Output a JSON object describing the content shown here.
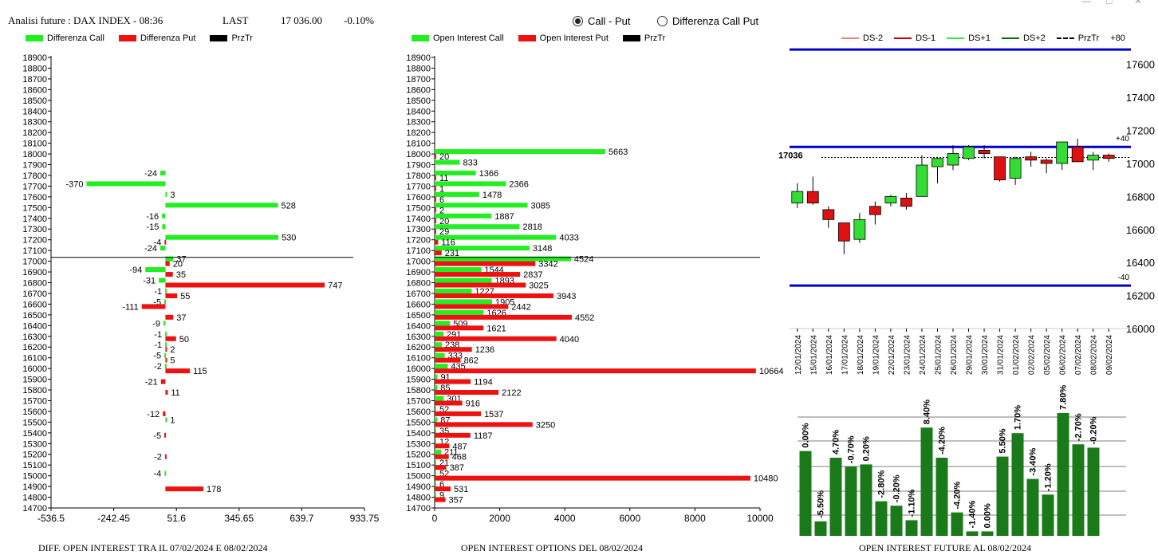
{
  "header": {
    "title": "Analisi future : DAX INDEX - 08:36",
    "last_label": "LAST",
    "last_value": "17 036.00",
    "change": "-0.10%"
  },
  "radio": {
    "option1": "Call - Put",
    "option2": "Differenza Call Put",
    "selected": "Call - Put"
  },
  "colors": {
    "call": "#22ee22",
    "put": "#ee1111",
    "przTr": "#000000",
    "band": "#0000cc",
    "oi_bar": "#1a7a1a"
  },
  "legend_left": [
    "Differenza Call",
    "Differenza Put",
    "PrzTr"
  ],
  "legend_mid": [
    "Open Interest Call",
    "Open Interest Put",
    "PrzTr"
  ],
  "legend_right": [
    "DS-2",
    "DS-1",
    "DS+1",
    "DS+2",
    "PrzTr",
    "+80"
  ],
  "captions": {
    "left": "DIFF. OPEN INTEREST TRA IL 07/02/2024 E 08/02/2024",
    "mid": "OPEN INTEREST OPTIONS DEL 08/02/2024",
    "right": "OPEN INTEREST FUTURE AL 08/02/2024"
  },
  "chart_data": [
    {
      "type": "bar",
      "orientation": "horizontal",
      "categories": [
        18900,
        18800,
        18700,
        18600,
        18500,
        18400,
        18300,
        18200,
        18100,
        18000,
        17900,
        17800,
        17700,
        17600,
        17500,
        17400,
        17300,
        17200,
        17100,
        17000,
        16900,
        16800,
        16700,
        16600,
        16500,
        16400,
        16300,
        16200,
        16100,
        16000,
        15900,
        15800,
        15700,
        15600,
        15500,
        15400,
        15300,
        15200,
        15100,
        15000,
        14900,
        14800,
        14700
      ],
      "x_ticks": [
        "-536.5",
        "-242.45",
        "51.6",
        "345.65",
        "639.7",
        "933.75"
      ],
      "xlim": [
        -536.5,
        933.75
      ],
      "przTr": 17036,
      "series": [
        {
          "name": "Differenza Call",
          "points": [
            [
              17800,
              -24
            ],
            [
              17700,
              -370
            ],
            [
              17600,
              3
            ],
            [
              17500,
              528
            ],
            [
              17400,
              -16
            ],
            [
              17300,
              -15
            ],
            [
              17200,
              530
            ],
            [
              17100,
              -24
            ],
            [
              17000,
              37
            ],
            [
              16900,
              -94
            ],
            [
              16800,
              -31
            ],
            [
              16700,
              -1
            ],
            [
              16600,
              -5
            ],
            [
              16400,
              -9
            ],
            [
              16300,
              -1
            ],
            [
              16200,
              -1
            ],
            [
              16100,
              -5
            ],
            [
              16000,
              -2
            ],
            [
              15500,
              1
            ],
            [
              15000,
              -4
            ]
          ]
        },
        {
          "name": "Differenza Put",
          "points": [
            [
              17200,
              -4
            ],
            [
              17000,
              20
            ],
            [
              16900,
              35
            ],
            [
              16800,
              747
            ],
            [
              16700,
              55
            ],
            [
              16600,
              -111
            ],
            [
              16500,
              37
            ],
            [
              16300,
              50
            ],
            [
              16200,
              2
            ],
            [
              16100,
              5
            ],
            [
              16000,
              115
            ],
            [
              15900,
              -21
            ],
            [
              15800,
              11
            ],
            [
              15600,
              -12
            ],
            [
              15400,
              -5
            ],
            [
              15200,
              -2
            ],
            [
              14900,
              178
            ]
          ]
        }
      ]
    },
    {
      "type": "bar",
      "orientation": "horizontal",
      "categories": [
        18900,
        18800,
        18700,
        18600,
        18500,
        18400,
        18300,
        18200,
        18100,
        18000,
        17900,
        17800,
        17700,
        17600,
        17500,
        17400,
        17300,
        17200,
        17100,
        17000,
        16900,
        16800,
        16700,
        16600,
        16500,
        16400,
        16300,
        16200,
        16100,
        16000,
        15900,
        15800,
        15700,
        15600,
        15500,
        15400,
        15300,
        15200,
        15100,
        15000,
        14900,
        14800,
        14700
      ],
      "x_ticks": [
        "0",
        "2000",
        "4000",
        "6000",
        "8000",
        "10000"
      ],
      "xlim": [
        0,
        10800
      ],
      "przTr": 17036,
      "series": [
        {
          "name": "Open Interest Call",
          "points": [
            [
              18000,
              5663
            ],
            [
              17900,
              833
            ],
            [
              17800,
              1366
            ],
            [
              17700,
              2366
            ],
            [
              17600,
              1478
            ],
            [
              17500,
              3085
            ],
            [
              17400,
              1887
            ],
            [
              17300,
              2818
            ],
            [
              17200,
              4033
            ],
            [
              17100,
              3148
            ],
            [
              17000,
              4524
            ],
            [
              16900,
              1544
            ],
            [
              16800,
              1893
            ],
            [
              16700,
              1227
            ],
            [
              16600,
              1905
            ],
            [
              16500,
              1626
            ],
            [
              16400,
              509
            ],
            [
              16300,
              291
            ],
            [
              16200,
              238
            ],
            [
              16100,
              333
            ],
            [
              16000,
              435
            ],
            [
              15900,
              91
            ],
            [
              15800,
              85
            ],
            [
              15700,
              301
            ],
            [
              15600,
              52
            ],
            [
              15500,
              87
            ],
            [
              15400,
              35
            ],
            [
              15300,
              12
            ],
            [
              15200,
              211
            ],
            [
              15100,
              21
            ],
            [
              15000,
              52
            ],
            [
              14900,
              6
            ],
            [
              14800,
              9
            ]
          ]
        },
        {
          "name": "Open Interest Put",
          "points": [
            [
              18000,
              20
            ],
            [
              17800,
              11
            ],
            [
              17700,
              1
            ],
            [
              17600,
              6
            ],
            [
              17500,
              2
            ],
            [
              17400,
              20
            ],
            [
              17300,
              29
            ],
            [
              17200,
              116
            ],
            [
              17100,
              231
            ],
            [
              17000,
              3342
            ],
            [
              16900,
              2837
            ],
            [
              16800,
              3025
            ],
            [
              16700,
              3943
            ],
            [
              16600,
              2442
            ],
            [
              16500,
              4552
            ],
            [
              16400,
              1621
            ],
            [
              16300,
              4040
            ],
            [
              16200,
              1236
            ],
            [
              16100,
              862
            ],
            [
              16000,
              10664
            ],
            [
              15900,
              1194
            ],
            [
              15800,
              2122
            ],
            [
              15700,
              916
            ],
            [
              15600,
              1537
            ],
            [
              15500,
              3250
            ],
            [
              15400,
              1187
            ],
            [
              15300,
              487
            ],
            [
              15200,
              468
            ],
            [
              15100,
              387
            ],
            [
              15000,
              10480
            ],
            [
              14900,
              531
            ],
            [
              14800,
              357
            ]
          ]
        }
      ]
    },
    {
      "type": "candlestick",
      "dates": [
        "12/01/2024",
        "15/01/2024",
        "16/01/2024",
        "17/01/2024",
        "18/01/2024",
        "19/01/2024",
        "22/01/2024",
        "23/01/2024",
        "24/01/2024",
        "25/01/2024",
        "26/01/2024",
        "29/01/2024",
        "30/01/2024",
        "31/01/2024",
        "01/02/2024",
        "02/02/2024",
        "05/02/2024",
        "06/02/2024",
        "07/02/2024",
        "08/02/2024",
        "09/02/2024"
      ],
      "ohlc": [
        [
          16760,
          16880,
          16730,
          16830
        ],
        [
          16830,
          16920,
          16750,
          16760
        ],
        [
          16720,
          16740,
          16610,
          16660
        ],
        [
          16640,
          16640,
          16450,
          16530
        ],
        [
          16540,
          16700,
          16520,
          16660
        ],
        [
          16740,
          16770,
          16630,
          16690
        ],
        [
          16760,
          16810,
          16740,
          16800
        ],
        [
          16790,
          16820,
          16720,
          16740
        ],
        [
          16800,
          17050,
          16800,
          16990
        ],
        [
          16980,
          17040,
          16880,
          17030
        ],
        [
          16990,
          17110,
          16960,
          17060
        ],
        [
          17030,
          17110,
          17020,
          17100
        ],
        [
          17080,
          17110,
          17030,
          17060
        ],
        [
          17040,
          17040,
          16890,
          16900
        ],
        [
          16910,
          17040,
          16870,
          17030
        ],
        [
          17040,
          17070,
          16980,
          17020
        ],
        [
          17020,
          17030,
          16940,
          17000
        ],
        [
          17000,
          17130,
          16960,
          17130
        ],
        [
          17100,
          17150,
          17020,
          17010
        ],
        [
          17020,
          17070,
          16960,
          17050
        ],
        [
          17050,
          17060,
          17010,
          17030
        ]
      ],
      "ylim": [
        16000,
        17700
      ],
      "y_ticks": [
        16000,
        16200,
        16400,
        16600,
        16800,
        17000,
        17200,
        17400,
        17600
      ],
      "przTr": 17036,
      "przTr_label": "17036",
      "band_upper": 17100,
      "band_lower": 16260,
      "band_top": 17690,
      "band_labels": {
        "upper": "+40",
        "lower": "-40"
      }
    },
    {
      "type": "bar",
      "categories": [
        "12/01/2024",
        "15/01/2024",
        "16/01/2024",
        "17/01/2024",
        "18/01/2024",
        "19/01/2024",
        "22/01/2024",
        "23/01/2024",
        "24/01/2024",
        "25/01/2024",
        "26/01/2024",
        "29/01/2024",
        "30/01/2024",
        "31/01/2024",
        "01/02/2024",
        "02/02/2024",
        "05/02/2024",
        "06/02/2024",
        "07/02/2024",
        "08/02/2024"
      ],
      "values": [
        0.76,
        0.13,
        0.7,
        0.62,
        0.64,
        0.31,
        0.27,
        0.14,
        0.97,
        0.7,
        0.21,
        0.04,
        0.04,
        0.71,
        0.92,
        0.51,
        0.37,
        1.1,
        0.82,
        0.79
      ],
      "value_labels": [
        "0.00%",
        "-5.50%",
        "4.70%",
        "-0.70%",
        "0.20%",
        "-2.80%",
        "-0.20%",
        "-1.10%",
        "8.40%",
        "-4.20%",
        "-4.20%",
        "-1.40%",
        "0.00%",
        "5.50%",
        "1.70%",
        "-3.40%",
        "-1.20%",
        "7.80%",
        "-2.70%",
        "-0.20%"
      ]
    }
  ]
}
